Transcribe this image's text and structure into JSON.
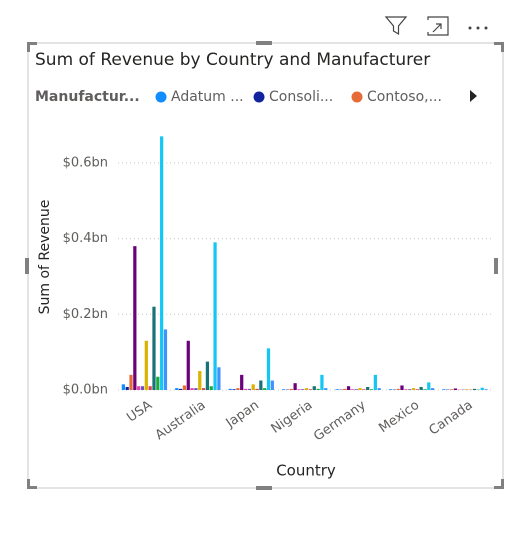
{
  "chart_data": {
    "type": "bar",
    "title": "Sum of Revenue by Country and Manufacturer",
    "legend_title": "Manufactur...",
    "x_label": "Country",
    "y_label": "Sum of Revenue",
    "categories": [
      "USA",
      "Australia",
      "Japan",
      "Nigeria",
      "Germany",
      "Mexico",
      "Canada"
    ],
    "series": [
      {
        "name": "Adatum ...",
        "color": "#118dff",
        "values": [
          0.015,
          0.005,
          0.003,
          0.002,
          0.002,
          0.002,
          0.002
        ]
      },
      {
        "name": "Consoli...",
        "color": "#12239e",
        "values": [
          0.008,
          0.003,
          0.002,
          0.001,
          0.001,
          0.001,
          0.001
        ]
      },
      {
        "name": "Contoso,...",
        "color": "#e66c37",
        "values": [
          0.04,
          0.012,
          0.005,
          0.003,
          0.003,
          0.003,
          0.002
        ]
      },
      {
        "color": "#6b007b",
        "values": [
          0.38,
          0.13,
          0.04,
          0.018,
          0.01,
          0.012,
          0.004
        ]
      },
      {
        "color": "#e044a7",
        "values": [
          0.01,
          0.005,
          0.003,
          0.002,
          0.002,
          0.002,
          0.001
        ]
      },
      {
        "color": "#744ec2",
        "values": [
          0.01,
          0.005,
          0.003,
          0.002,
          0.002,
          0.002,
          0.001
        ]
      },
      {
        "color": "#d9b300",
        "values": [
          0.13,
          0.05,
          0.015,
          0.005,
          0.005,
          0.005,
          0.002
        ]
      },
      {
        "color": "#d64550",
        "values": [
          0.01,
          0.005,
          0.003,
          0.002,
          0.002,
          0.002,
          0.001
        ]
      },
      {
        "color": "#197278",
        "values": [
          0.22,
          0.075,
          0.025,
          0.01,
          0.008,
          0.008,
          0.003
        ]
      },
      {
        "color": "#1aab40",
        "values": [
          0.035,
          0.01,
          0.005,
          0.003,
          0.002,
          0.002,
          0.001
        ]
      },
      {
        "color": "#15c6f4",
        "values": [
          0.67,
          0.39,
          0.11,
          0.04,
          0.04,
          0.02,
          0.006
        ]
      },
      {
        "color": "#4092ff",
        "values": [
          0.16,
          0.06,
          0.025,
          0.005,
          0.005,
          0.005,
          0.002
        ]
      }
    ],
    "ylim": [
      0,
      0.7
    ],
    "yticks": [
      {
        "value": 0,
        "label": "$0.0bn"
      },
      {
        "value": 0.2,
        "label": "$0.2bn"
      },
      {
        "value": 0.4,
        "label": "$0.4bn"
      },
      {
        "value": 0.6,
        "label": "$0.6bn"
      }
    ],
    "grid": true
  }
}
